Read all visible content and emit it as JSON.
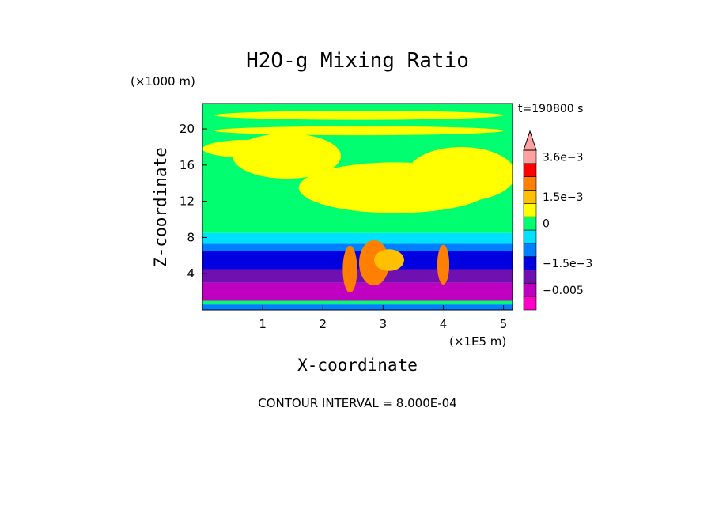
{
  "chart_data": {
    "type": "heatmap",
    "title": "H2O-g Mixing Ratio",
    "xlabel": "X-coordinate",
    "ylabel": "Z-coordinate",
    "x_units": "(×1E5 m)",
    "y_units": "(×1000 m)",
    "xlim": [
      0,
      5.15
    ],
    "ylim": [
      0,
      22.8
    ],
    "x_ticks": [
      1,
      2,
      3,
      4,
      5
    ],
    "y_ticks": [
      4,
      8,
      12,
      16,
      20
    ],
    "time_label": "t=190800 s",
    "contour_interval": "CONTOUR INTERVAL = 8.000E-04",
    "colorbar": {
      "levels": [
        {
          "color": "#ff00c8",
          "label": ""
        },
        {
          "color": "#c000c0",
          "label": "−0.005"
        },
        {
          "color": "#7010b0",
          "label": ""
        },
        {
          "color": "#0000e0",
          "label": "−1.5e−3"
        },
        {
          "color": "#0080ff",
          "label": ""
        },
        {
          "color": "#00e0ff",
          "label": ""
        },
        {
          "color": "#00ff70",
          "label": "0"
        },
        {
          "color": "#ffff00",
          "label": ""
        },
        {
          "color": "#ffc000",
          "label": "1.5e−3"
        },
        {
          "color": "#ff8000",
          "label": ""
        },
        {
          "color": "#ff0000",
          "label": ""
        },
        {
          "color": "#ffa0a0",
          "label": "3.6e−3"
        }
      ]
    },
    "field_bands": [
      {
        "z_from": 0,
        "z_to": 0.6,
        "color": "#0080ff"
      },
      {
        "z_from": 0.6,
        "z_to": 1.0,
        "color": "#00ff70"
      },
      {
        "z_from": 1.0,
        "z_to": 3.0,
        "color": "#c000c0"
      },
      {
        "z_from": 3.0,
        "z_to": 4.5,
        "color": "#7010b0"
      },
      {
        "z_from": 4.5,
        "z_to": 6.5,
        "color": "#0000e0"
      },
      {
        "z_from": 6.5,
        "z_to": 7.3,
        "color": "#0080ff"
      },
      {
        "z_from": 7.3,
        "z_to": 8.5,
        "color": "#00e0ff"
      },
      {
        "z_from": 8.5,
        "z_to": 22.8,
        "color": "#00ff70"
      }
    ],
    "moist_regions": [
      {
        "x": 1.4,
        "z": 17.0,
        "rx": 0.9,
        "rz": 2.5,
        "color": "#ffff00"
      },
      {
        "x": 3.2,
        "z": 13.5,
        "rx": 1.6,
        "rz": 2.8,
        "color": "#ffff00"
      },
      {
        "x": 4.3,
        "z": 15.0,
        "rx": 0.9,
        "rz": 3.0,
        "color": "#ffff00"
      },
      {
        "x": 0.8,
        "z": 17.8,
        "rx": 0.8,
        "rz": 1.0,
        "color": "#ffff00"
      },
      {
        "x": 2.6,
        "z": 21.5,
        "rx": 2.4,
        "rz": 0.5,
        "color": "#ffff00"
      },
      {
        "x": 2.6,
        "z": 19.8,
        "rx": 2.4,
        "rz": 0.5,
        "color": "#ffff00"
      },
      {
        "x": 2.45,
        "z": 4.5,
        "rx": 0.12,
        "rz": 2.6,
        "color": "#ff8000"
      },
      {
        "x": 2.85,
        "z": 5.2,
        "rx": 0.25,
        "rz": 2.5,
        "color": "#ff8000"
      },
      {
        "x": 3.1,
        "z": 5.5,
        "rx": 0.25,
        "rz": 1.2,
        "color": "#ffc000"
      },
      {
        "x": 4.0,
        "z": 5.0,
        "rx": 0.1,
        "rz": 2.2,
        "color": "#ff8000"
      }
    ]
  }
}
